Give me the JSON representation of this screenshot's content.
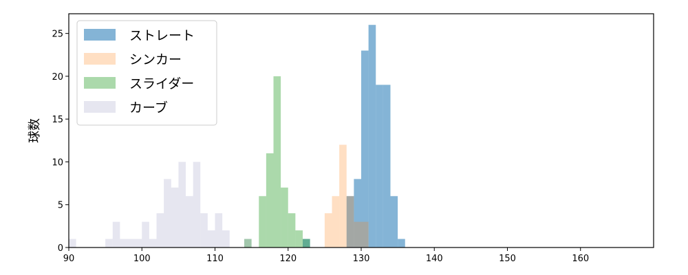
{
  "chart_data": {
    "type": "bar",
    "title": "",
    "xlabel": "",
    "ylabel": "球数",
    "xlim": [
      90,
      170
    ],
    "ylim": [
      0,
      27.3
    ],
    "xticks": [
      90,
      100,
      110,
      120,
      130,
      140,
      150,
      160
    ],
    "yticks": [
      0,
      5,
      10,
      15,
      20,
      25
    ],
    "bin_width": 1,
    "legend_position": "top-left",
    "grid": false,
    "series": [
      {
        "name": "ストレート",
        "color": "#1f77b4",
        "opacity": 0.55,
        "bins": [
          [
            122,
            1
          ],
          [
            128,
            6
          ],
          [
            129,
            8
          ],
          [
            130,
            23
          ],
          [
            131,
            26
          ],
          [
            132,
            19
          ],
          [
            133,
            19
          ],
          [
            134,
            6
          ],
          [
            135,
            1
          ]
        ]
      },
      {
        "name": "シンカー",
        "color": "#ff7f0e",
        "opacity": 0.25,
        "bins": [
          [
            125,
            4
          ],
          [
            126,
            6
          ],
          [
            127,
            12
          ],
          [
            128,
            6
          ],
          [
            129,
            3
          ],
          [
            130,
            3
          ]
        ]
      },
      {
        "name": "スライダー",
        "color": "#2ca02c",
        "opacity": 0.4,
        "bins": [
          [
            114,
            1
          ],
          [
            116,
            6
          ],
          [
            117,
            11
          ],
          [
            118,
            20
          ],
          [
            119,
            7
          ],
          [
            120,
            4
          ],
          [
            121,
            2
          ],
          [
            122,
            1
          ]
        ]
      },
      {
        "name": "カーブ",
        "color": "#8282b4",
        "opacity": 0.2,
        "bins": [
          [
            90,
            1
          ],
          [
            95,
            1
          ],
          [
            96,
            3
          ],
          [
            97,
            1
          ],
          [
            98,
            1
          ],
          [
            99,
            1
          ],
          [
            100,
            3
          ],
          [
            101,
            1
          ],
          [
            102,
            4
          ],
          [
            103,
            8
          ],
          [
            104,
            7
          ],
          [
            105,
            10
          ],
          [
            106,
            6
          ],
          [
            107,
            10
          ],
          [
            108,
            4
          ],
          [
            109,
            2
          ],
          [
            110,
            4
          ],
          [
            111,
            2
          ],
          [
            114,
            1
          ]
        ]
      }
    ]
  }
}
